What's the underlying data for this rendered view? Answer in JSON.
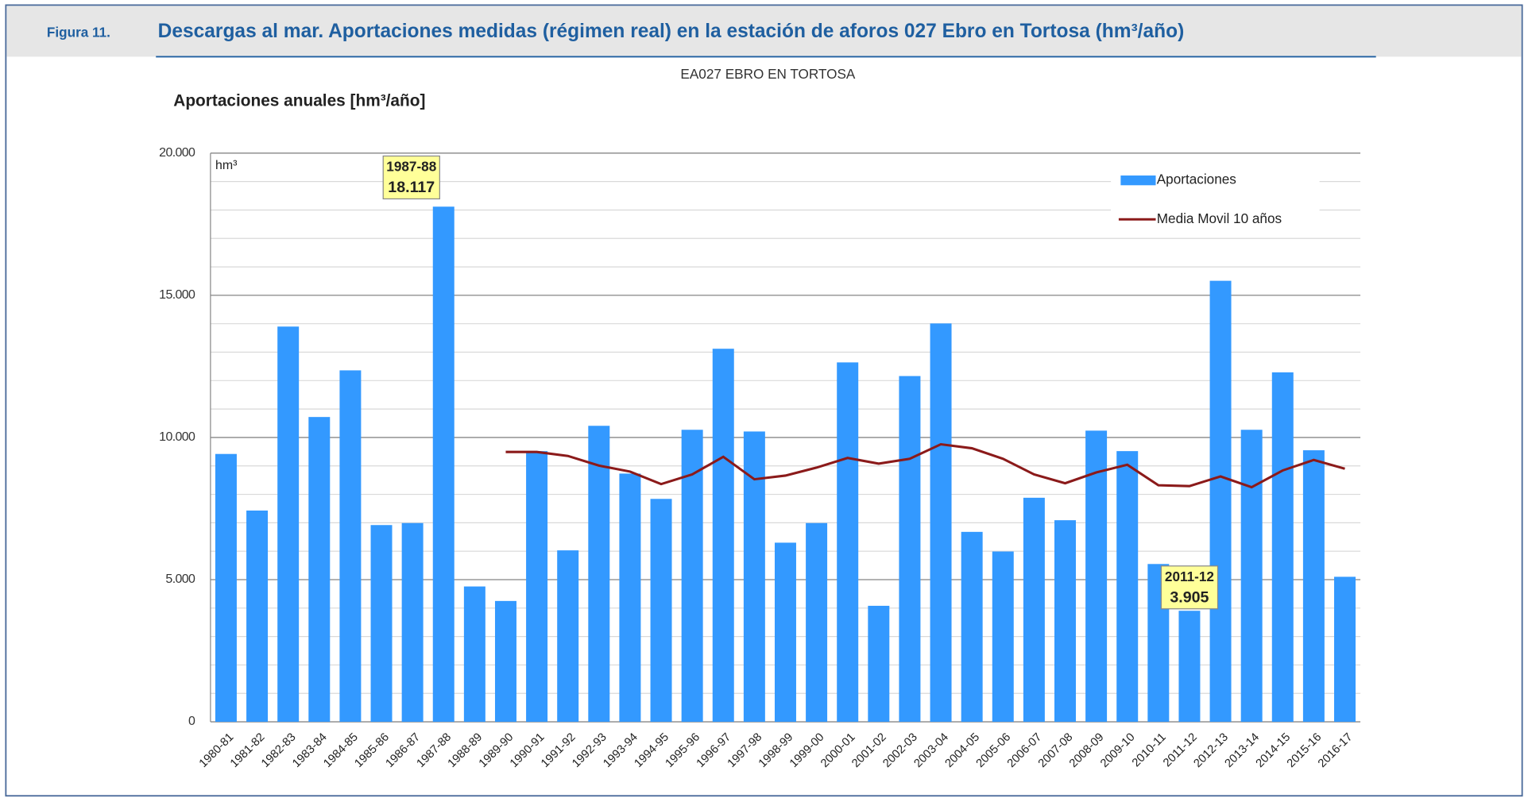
{
  "header": {
    "figure": "Figura 11.",
    "title": "Descargas al mar. Aportaciones medidas (régimen real) en la estación de aforos 027 Ebro en Tortosa (hm³/año)"
  },
  "chart_data": {
    "type": "bar",
    "title": "EA027 EBRO EN TORTOSA",
    "ylabel": "Aportaciones anuales [hm³/año]",
    "unit_label": "hm³",
    "categories": [
      "1980-81",
      "1981-82",
      "1982-83",
      "1983-84",
      "1984-85",
      "1985-86",
      "1986-87",
      "1987-88",
      "1988-89",
      "1989-90",
      "1990-91",
      "1991-92",
      "1992-93",
      "1993-94",
      "1994-95",
      "1995-96",
      "1996-97",
      "1997-98",
      "1998-99",
      "1999-00",
      "2000-01",
      "2001-02",
      "2002-03",
      "2003-04",
      "2004-05",
      "2005-06",
      "2006-07",
      "2007-08",
      "2008-09",
      "2009-10",
      "2010-11",
      "2011-12",
      "2012-13",
      "2013-14",
      "2014-15",
      "2015-16",
      "2016-17"
    ],
    "series": [
      {
        "name": "Aportaciones",
        "type": "bar",
        "color": "#3399ff",
        "values": [
          9420,
          7430,
          13900,
          10720,
          12360,
          6920,
          6990,
          18117,
          4760,
          4250,
          9520,
          6030,
          10410,
          8730,
          7840,
          10270,
          13120,
          10210,
          6300,
          6990,
          12640,
          4080,
          12160,
          14010,
          6680,
          5990,
          7880,
          7090,
          10240,
          9520,
          5550,
          3905,
          15510,
          10270,
          12290,
          9550,
          5100
        ]
      },
      {
        "name": "Media Movil 10 años",
        "type": "line",
        "color": "#8b1a1a",
        "values": [
          null,
          null,
          null,
          null,
          null,
          null,
          null,
          null,
          null,
          9490,
          9490,
          9350,
          9010,
          8800,
          8360,
          8700,
          9320,
          8530,
          8660,
          8940,
          9280,
          9080,
          9250,
          9760,
          9620,
          9250,
          8700,
          8390,
          8770,
          9040,
          8320,
          8290,
          8630,
          8250,
          8840,
          9210,
          8900
        ]
      }
    ],
    "ylim": [
      0,
      20000
    ],
    "yticks": [
      0,
      {
        "value": 5000,
        "label": "5.000"
      },
      {
        "value": 10000,
        "label": "10.000"
      },
      {
        "value": 15000,
        "label": "15.000"
      },
      {
        "value": 20000,
        "label": "20.000"
      }
    ],
    "yticks_minor": [
      1000,
      2000,
      3000,
      4000,
      6000,
      7000,
      8000,
      9000,
      11000,
      12000,
      13000,
      14000,
      16000,
      17000,
      18000,
      19000
    ],
    "grid": true,
    "legend": "upper right",
    "annotations": [
      {
        "category": "1987-88",
        "label": "18.117"
      },
      {
        "category": "2011-12",
        "label": "3.905"
      }
    ]
  }
}
